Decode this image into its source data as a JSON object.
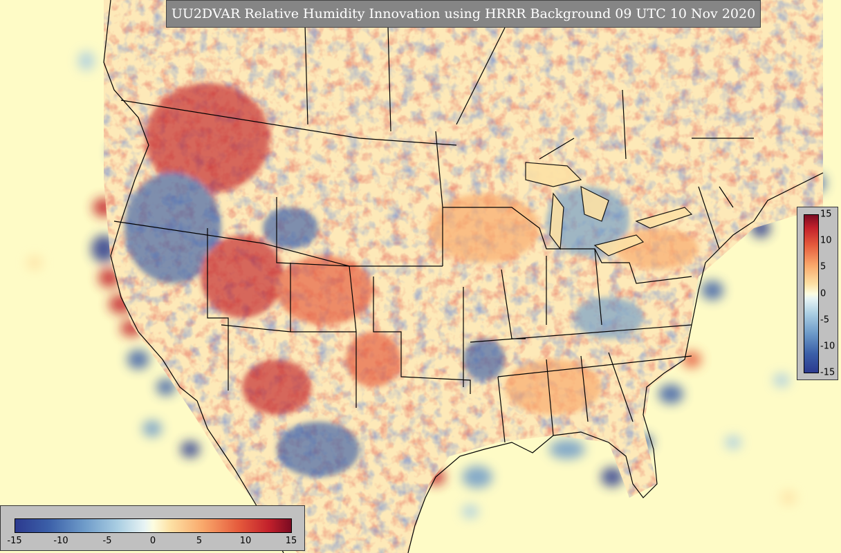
{
  "title": "UU2DVAR Relative Humidity Innovation using HRRR Background 09 UTC 10 Nov 2020",
  "colorbar": {
    "min": -15,
    "max": 15,
    "vertical_ticks": [
      "15",
      "10",
      "5",
      "0",
      "-5",
      "-10",
      "-15"
    ],
    "horizontal_ticks": [
      "-15",
      "-10",
      "-5",
      "0",
      "5",
      "10",
      "15"
    ]
  },
  "colors": {
    "background": "#fefbc6",
    "title_box": "#858585",
    "colorbar_box": "#c0c0c0",
    "positive_max": "#7a0b22",
    "negative_max": "#2c3a8f"
  }
}
